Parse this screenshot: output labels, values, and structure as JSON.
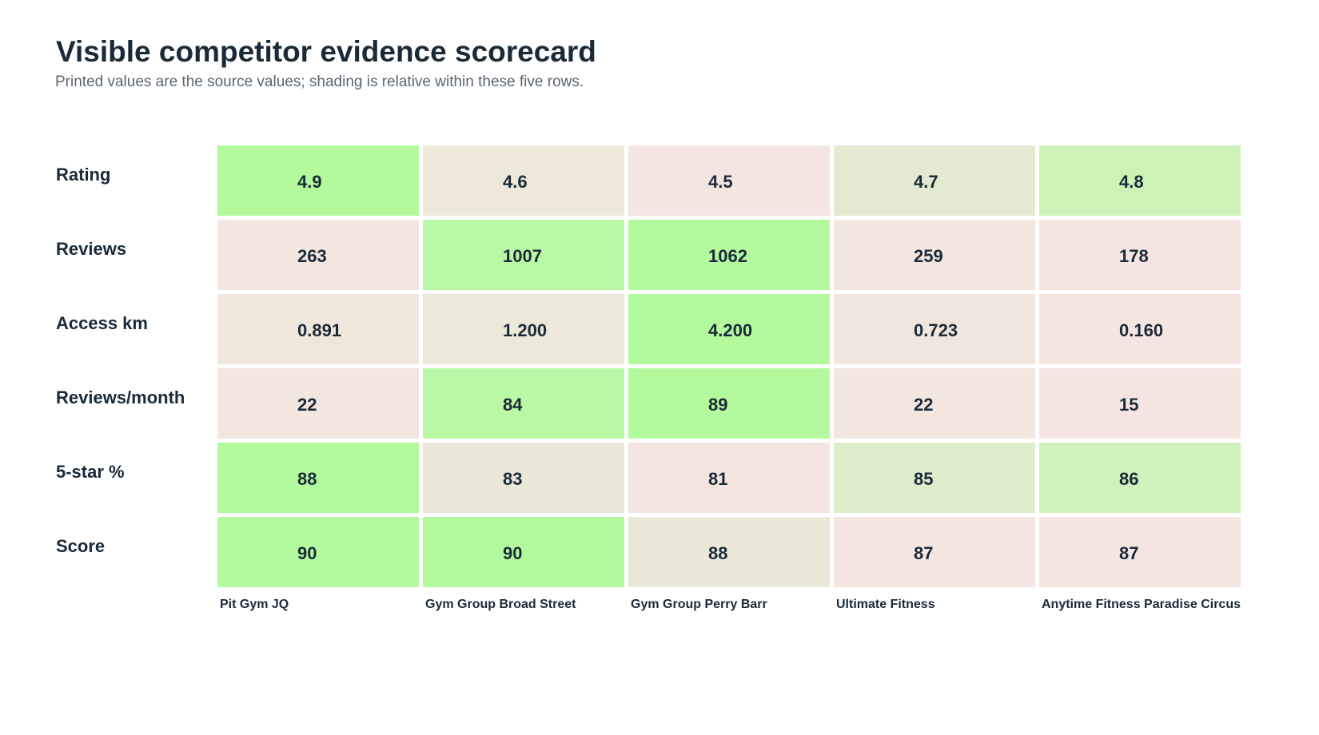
{
  "title": "Visible competitor evidence scorecard",
  "subtitle": "Printed values are the source values; shading is relative within these five rows.",
  "colors": {
    "high": "#b3fa9e",
    "mid": "#e4ead2",
    "low": "#f5e5e2",
    "text": "#1b2a38"
  },
  "chart_data": {
    "type": "heatmap",
    "title": "Visible competitor evidence scorecard",
    "subtitle": "Printed values are the source values; shading is relative within these five rows.",
    "columns": [
      "Pit Gym JQ",
      "Gym Group Broad Street",
      "Gym Group Perry Barr",
      "Ultimate Fitness",
      "Anytime Fitness Paradise Circus"
    ],
    "rows": [
      {
        "label": "Rating",
        "values": [
          4.9,
          4.6,
          4.5,
          4.7,
          4.8
        ],
        "display": [
          "4.9",
          "4.6",
          "4.5",
          "4.7",
          "4.8"
        ]
      },
      {
        "label": "Reviews",
        "values": [
          263,
          1007,
          1062,
          259,
          178
        ],
        "display": [
          "263",
          "1007",
          "1062",
          "259",
          "178"
        ]
      },
      {
        "label": "Access km",
        "values": [
          0.891,
          1.2,
          4.2,
          0.723,
          0.16
        ],
        "display": [
          "0.891",
          "1.200",
          "4.200",
          "0.723",
          "0.160"
        ]
      },
      {
        "label": "Reviews/month",
        "values": [
          22,
          84,
          89,
          22,
          15
        ],
        "display": [
          "22",
          "84",
          "89",
          "22",
          "15"
        ]
      },
      {
        "label": "5-star %",
        "values": [
          88,
          83,
          81,
          85,
          86
        ],
        "display": [
          "88",
          "83",
          "81",
          "85",
          "86"
        ]
      },
      {
        "label": "Score",
        "values": [
          90,
          90,
          88,
          87,
          87
        ],
        "display": [
          "90",
          "90",
          "88",
          "87",
          "87"
        ]
      }
    ],
    "shading": "relative within each row",
    "legend": "none",
    "grid": false
  }
}
